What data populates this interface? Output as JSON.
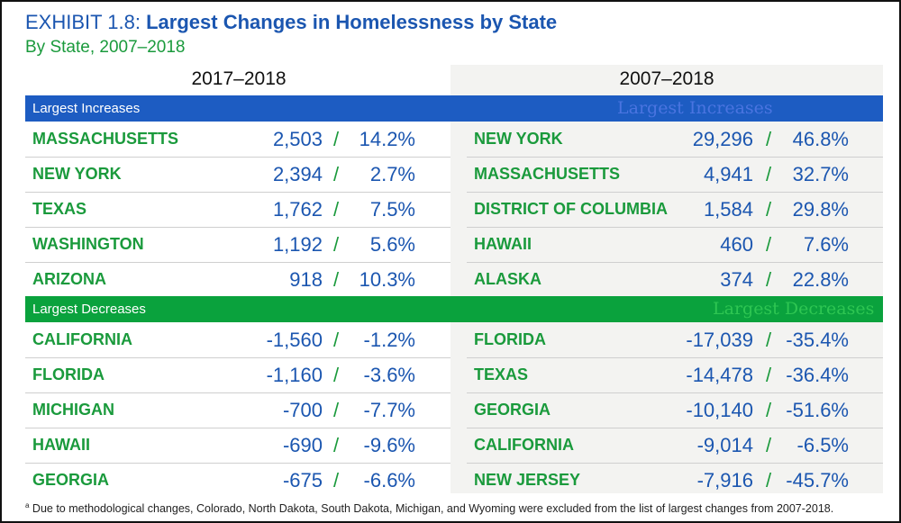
{
  "title_prefix": "EXHIBIT 1.8: ",
  "title_main": "Largest Changes in Homelessness by State",
  "subtitle": "By State, 2007–2018",
  "col_left": "2017–2018",
  "col_right": "2007–2018",
  "increases_label": "Largest Increases",
  "increases_overlay": "Largest Increases",
  "decreases_label": "Largest Decreases",
  "decreases_overlay": "Largest Decreases",
  "left_increases": [
    {
      "state": "MASSACHUSETTS",
      "count": "2,503",
      "pct": "14.2%"
    },
    {
      "state": "NEW YORK",
      "count": "2,394",
      "pct": "2.7%"
    },
    {
      "state": "TEXAS",
      "count": "1,762",
      "pct": "7.5%"
    },
    {
      "state": "WASHINGTON",
      "count": "1,192",
      "pct": "5.6%"
    },
    {
      "state": "ARIZONA",
      "count": "918",
      "pct": "10.3%"
    }
  ],
  "right_increases": [
    {
      "state": "NEW YORK",
      "count": "29,296",
      "pct": "46.8%"
    },
    {
      "state": "MASSACHUSETTS",
      "count": "4,941",
      "pct": "32.7%"
    },
    {
      "state": "DISTRICT OF COLUMBIA",
      "count": "1,584",
      "pct": "29.8%"
    },
    {
      "state": "HAWAII",
      "count": "460",
      "pct": "7.6%"
    },
    {
      "state": "ALASKA",
      "count": "374",
      "pct": "22.8%"
    }
  ],
  "left_decreases": [
    {
      "state": "CALIFORNIA",
      "count": "-1,560",
      "pct": "-1.2%"
    },
    {
      "state": "FLORIDA",
      "count": "-1,160",
      "pct": "-3.6%"
    },
    {
      "state": "MICHIGAN",
      "count": "-700",
      "pct": "-7.7%"
    },
    {
      "state": "HAWAII",
      "count": "-690",
      "pct": "-9.6%"
    },
    {
      "state": "GEORGIA",
      "count": "-675",
      "pct": "-6.6%"
    }
  ],
  "right_decreases": [
    {
      "state": "FLORIDA",
      "count": "-17,039",
      "pct": "-35.4%"
    },
    {
      "state": "TEXAS",
      "count": "-14,478",
      "pct": "-36.4%"
    },
    {
      "state": "GEORGIA",
      "count": "-10,140",
      "pct": "-51.6%"
    },
    {
      "state": "CALIFORNIA",
      "count": "-9,014",
      "pct": "-6.5%"
    },
    {
      "state": "NEW JERSEY",
      "count": "-7,916",
      "pct": "-45.7%"
    }
  ],
  "separator": "/",
  "footnote_marker": "a",
  "footnote": " Due to methodological changes, Colorado, North Dakota, South Dakota, Michigan, and Wyoming were excluded from the list of largest changes from 2007-2018.",
  "colors": {
    "blue": "#1b56b0",
    "green": "#1a9a3c",
    "bar_blue": "#1d5cc2",
    "bar_green": "#0aa23d"
  }
}
